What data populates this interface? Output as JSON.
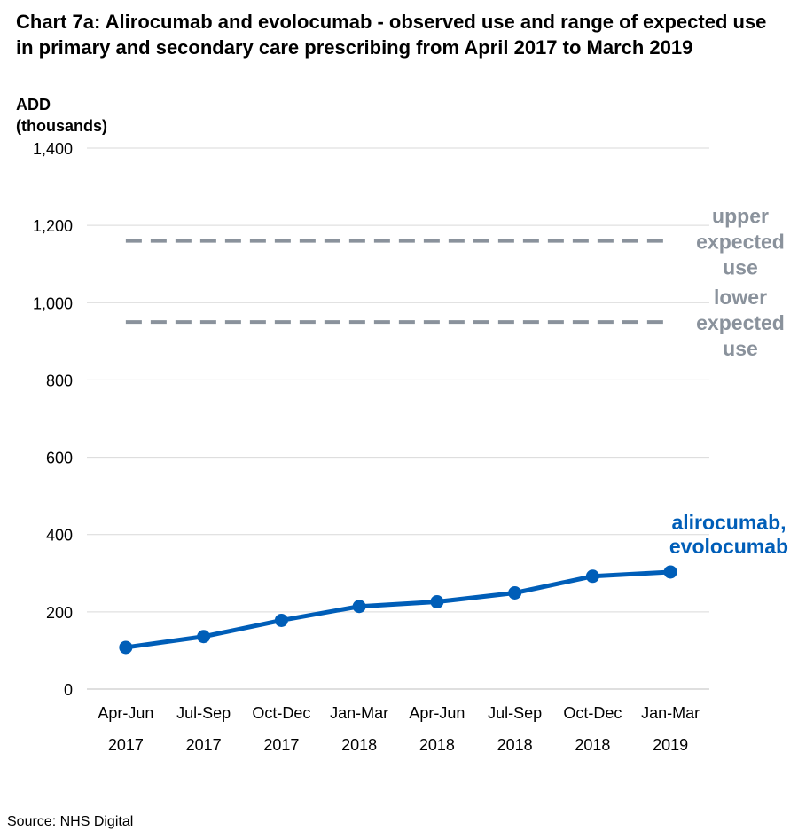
{
  "title": "Chart 7a: Alirocumab and evolocumab - observed use and range of expected use in primary and secondary care prescribing from April 2017 to March 2019",
  "source": "Source: NHS Digital",
  "chart_data": {
    "type": "line",
    "title": "Chart 7a: Alirocumab and evolocumab - observed use and range of expected use in primary and secondary care prescribing from April 2017 to March 2019",
    "ylabel_lines": [
      "ADD",
      "(thousands)"
    ],
    "xlabel": "",
    "ylim": [
      0,
      1400
    ],
    "yticks": [
      0,
      200,
      400,
      600,
      800,
      1000,
      1200,
      1400
    ],
    "ytick_labels": [
      "0",
      "200",
      "400",
      "600",
      "800",
      "1,000",
      "1,200",
      "1,400"
    ],
    "grid": "horizontal",
    "categories": [
      [
        "Apr-Jun",
        "2017"
      ],
      [
        "Jul-Sep",
        "2017"
      ],
      [
        "Oct-Dec",
        "2017"
      ],
      [
        "Jan-Mar",
        "2018"
      ],
      [
        "Apr-Jun",
        "2018"
      ],
      [
        "Jul-Sep",
        "2018"
      ],
      [
        "Oct-Dec",
        "2018"
      ],
      [
        "Jan-Mar",
        "2019"
      ]
    ],
    "series": [
      {
        "name": "alirocumab, evolocumab",
        "name_lines": [
          "alirocumab,",
          "evolocumab"
        ],
        "values": [
          108,
          136,
          178,
          214,
          226,
          249,
          292,
          303
        ],
        "color": "#005eb8",
        "style": "solid-with-markers"
      },
      {
        "name": "upper expected use",
        "name_lines": [
          "upper",
          "expected",
          "use"
        ],
        "values": [
          1160,
          1160,
          1160,
          1160,
          1160,
          1160,
          1160,
          1160
        ],
        "color": "#8a929c",
        "style": "dashed"
      },
      {
        "name": "lower expected use",
        "name_lines": [
          "lower",
          "expected",
          "use"
        ],
        "values": [
          950,
          950,
          950,
          950,
          950,
          950,
          950,
          950
        ],
        "color": "#8a929c",
        "style": "dashed"
      }
    ]
  }
}
